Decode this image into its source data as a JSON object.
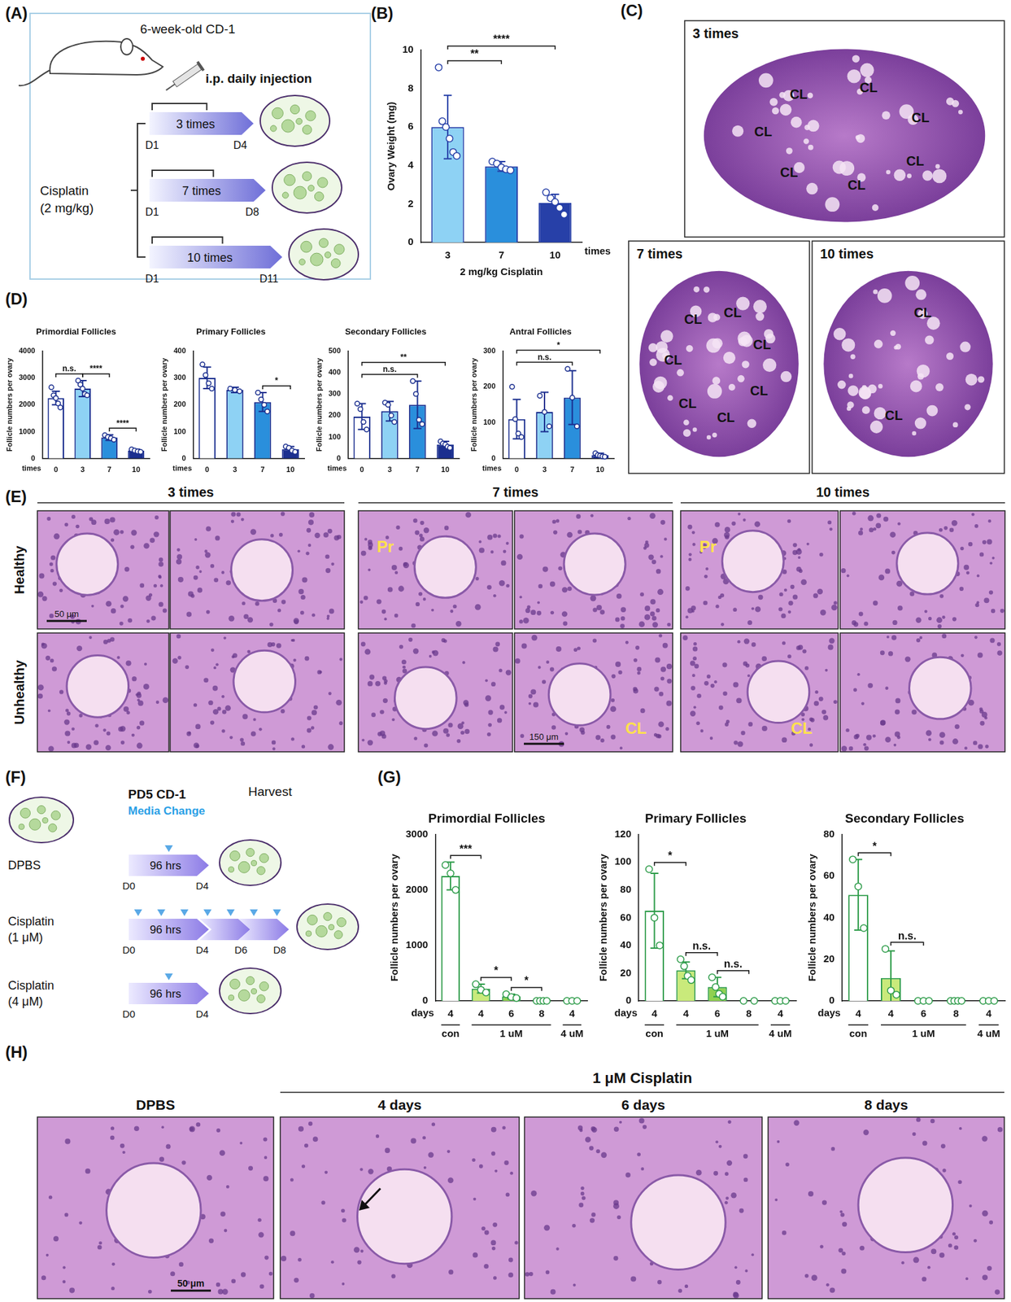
{
  "figure": {
    "panel_letters": [
      "(A)",
      "(B)",
      "(C)",
      "(D)",
      "(E)",
      "(F)",
      "(G)",
      "(H)"
    ],
    "A": {
      "animal": "6-week-old CD-1",
      "route": "i.p. daily injection",
      "drug": [
        "Cisplatin",
        "(2 mg/kg)"
      ],
      "arms": [
        {
          "label": "3 times",
          "start": "D1",
          "end": "D4"
        },
        {
          "label": "7 times",
          "start": "D1",
          "end": "D8"
        },
        {
          "label": "10 times",
          "start": "D1",
          "end": "D11"
        }
      ]
    },
    "C": {
      "sections": [
        {
          "label": "3 times",
          "marks": [
            "CL",
            "CL",
            "CL",
            "CL",
            "CL",
            "CL",
            "CL"
          ]
        },
        {
          "label": "7 times",
          "marks": [
            "CL",
            "CL",
            "CL",
            "CL",
            "CL",
            "CL",
            "CL"
          ]
        },
        {
          "label": "10 times",
          "marks": [
            "CL",
            "CL"
          ]
        }
      ]
    },
    "E": {
      "columns": [
        "3 times",
        "7 times",
        "10 times"
      ],
      "rows": [
        "Healthy",
        "Unhealthy"
      ],
      "tiles": [
        [
          {
            "labels": [],
            "scale": "50 μm"
          },
          {
            "labels": []
          },
          {
            "labels": [
              "Pr"
            ]
          },
          {
            "labels": []
          },
          {
            "labels": [
              "Pr"
            ]
          },
          {
            "labels": []
          }
        ],
        [
          {
            "labels": []
          },
          {
            "labels": []
          },
          {
            "labels": []
          },
          {
            "labels": [
              "CL"
            ],
            "scale": "150 μm"
          },
          {
            "labels": [
              "CL"
            ]
          },
          {
            "labels": []
          }
        ]
      ]
    },
    "F": {
      "source": "PD5 CD-1",
      "media": "Media Change",
      "harvest": "Harvest",
      "arms": [
        {
          "label": [
            "DPBS"
          ],
          "duration": "96 hrs",
          "days": [
            "D0",
            "D4"
          ],
          "media_changes": 1
        },
        {
          "label": [
            "Cisplatin",
            "(1 μM)"
          ],
          "duration": "96 hrs",
          "days": [
            "D0",
            "D4",
            "D6",
            "D8"
          ],
          "media_changes": 7
        },
        {
          "label": [
            "Cisplatin",
            "(4 μM)"
          ],
          "duration": "96 hrs",
          "days": [
            "D0",
            "D4"
          ],
          "media_changes": 1
        }
      ]
    },
    "H": {
      "group": "1 μM Cisplatin",
      "tiles": [
        "DPBS",
        "4 days",
        "6 days",
        "8 days"
      ],
      "scale": "50 μm"
    }
  },
  "chart_data": [
    {
      "type": "bar",
      "categories": [
        "3",
        "7",
        "10"
      ],
      "values": [
        6.0,
        3.95,
        2.05
      ],
      "errors": [
        1.65,
        0.25,
        0.45
      ],
      "points": [
        [
          9.1,
          6.3,
          6.0,
          5.4,
          4.7,
          4.5
        ],
        [
          4.2,
          4.1,
          3.9,
          3.8,
          3.75
        ],
        [
          2.6,
          2.3,
          2.1,
          1.8,
          1.45
        ]
      ],
      "colors": [
        "#8ed2f4",
        "#2a8fdc",
        "#2740a8"
      ],
      "y_label": "Ovary Weight (mg)",
      "x_label": "times",
      "x_title": "2 mg/kg Cisplatin",
      "ylim": [
        0,
        10
      ],
      "yticks": [
        0,
        2,
        4,
        6,
        8,
        10
      ],
      "grid": false,
      "annotations": [
        {
          "from": 0,
          "to": 1,
          "label": "**"
        },
        {
          "from": 0,
          "to": 2,
          "label": "****"
        }
      ]
    },
    {
      "type": "bar",
      "title": "Primordial Follicles",
      "categories": [
        "0",
        "3",
        "7",
        "10"
      ],
      "values": [
        2250,
        2600,
        780,
        290
      ],
      "errors": [
        250,
        300,
        100,
        60
      ],
      "points": [
        [
          2650,
          2350,
          2250,
          2050,
          1900
        ],
        [
          2900,
          2750,
          2600,
          2400,
          2350
        ],
        [
          870,
          800,
          760,
          700
        ],
        [
          340,
          300,
          270,
          250
        ]
      ],
      "colors": [
        "#ffffff",
        "#8ed2f4",
        "#2a8fdc",
        "#1b2f8f"
      ],
      "y_label": "Follicle numbers per ovary",
      "x_label": "times",
      "ylim": [
        0,
        4000
      ],
      "yticks": [
        0,
        1000,
        2000,
        3000,
        4000
      ],
      "grid": false,
      "annotations": [
        {
          "from": 0,
          "to": 1,
          "label": "n.s."
        },
        {
          "from": 1,
          "to": 2,
          "label": "****"
        },
        {
          "from": 2,
          "to": 3,
          "label": "****"
        }
      ]
    },
    {
      "type": "bar",
      "title": "Primary Follicles",
      "categories": [
        "0",
        "3",
        "7",
        "10"
      ],
      "values": [
        300,
        255,
        210,
        35
      ],
      "errors": [
        40,
        10,
        35,
        10
      ],
      "points": [
        [
          350,
          310,
          280,
          260
        ],
        [
          260,
          255,
          250
        ],
        [
          245,
          220,
          200,
          175
        ],
        [
          45,
          40,
          30,
          25
        ]
      ],
      "colors": [
        "#ffffff",
        "#8ed2f4",
        "#2a8fdc",
        "#1b2f8f"
      ],
      "y_label": "Follicle numbers per ovary",
      "x_label": "times",
      "ylim": [
        0,
        400
      ],
      "yticks": [
        0,
        100,
        200,
        300,
        400
      ],
      "grid": false,
      "annotations": [
        {
          "from": 2,
          "to": 3,
          "label": "*"
        }
      ]
    },
    {
      "type": "bar",
      "title": "Secondary Follicles",
      "categories": [
        "0",
        "3",
        "7",
        "10"
      ],
      "values": [
        195,
        220,
        250,
        65
      ],
      "errors": [
        60,
        45,
        110,
        15
      ],
      "points": [
        [
          255,
          230,
          170,
          135
        ],
        [
          260,
          250,
          200,
          170
        ],
        [
          360,
          300,
          180,
          160
        ],
        [
          80,
          70,
          65,
          55,
          50
        ]
      ],
      "colors": [
        "#ffffff",
        "#8ed2f4",
        "#2a8fdc",
        "#1b2f8f"
      ],
      "y_label": "Follicle numbers per ovary",
      "x_label": "times",
      "ylim": [
        0,
        500
      ],
      "yticks": [
        0,
        100,
        200,
        300,
        400,
        500
      ],
      "grid": false,
      "annotations": [
        {
          "from": 0,
          "to": 2,
          "label": "n.s."
        },
        {
          "from": 0,
          "to": 3,
          "label": "**"
        }
      ]
    },
    {
      "type": "bar",
      "title": "Antral Follicles",
      "categories": [
        "0",
        "3",
        "7",
        "10"
      ],
      "values": [
        110,
        130,
        170,
        10
      ],
      "errors": [
        55,
        55,
        75,
        5
      ],
      "points": [
        [
          200,
          110,
          70,
          60
        ],
        [
          175,
          130,
          90
        ],
        [
          250,
          170,
          90
        ],
        [
          15,
          10,
          8,
          6,
          5
        ]
      ],
      "colors": [
        "#ffffff",
        "#8ed2f4",
        "#2a8fdc",
        "#1b2f8f"
      ],
      "y_label": "Follicle numbers per ovary",
      "x_label": "times",
      "ylim": [
        0,
        300
      ],
      "yticks": [
        0,
        100,
        200,
        300
      ],
      "grid": false,
      "annotations": [
        {
          "from": 0,
          "to": 2,
          "label": "n.s."
        },
        {
          "from": 0,
          "to": 3,
          "label": "*"
        }
      ]
    },
    {
      "type": "bar",
      "title": "Primordial Follicles",
      "categories": [
        "4",
        "4",
        "6",
        "8",
        "4"
      ],
      "values": [
        2250,
        220,
        80,
        0,
        0
      ],
      "errors": [
        250,
        80,
        40,
        0,
        0
      ],
      "points": [
        [
          2450,
          2300,
          2000
        ],
        [
          300,
          200,
          150
        ],
        [
          120,
          70,
          50
        ],
        [
          0,
          0,
          0,
          0
        ],
        [
          0,
          0,
          0
        ]
      ],
      "colors": [
        "#ffffff",
        "#c9ea7b",
        "#8fd151",
        "#2e9c4a",
        "#2e9c4a"
      ],
      "y_label": "Follicle numbers per ovary",
      "x_label": "days",
      "groups": [
        {
          "label": "con",
          "from": 0,
          "to": 0
        },
        {
          "label": "1 uM",
          "from": 1,
          "to": 3
        },
        {
          "label": "4 uM",
          "from": 4,
          "to": 4
        }
      ],
      "ylim": [
        0,
        3000
      ],
      "yticks": [
        0,
        1000,
        2000,
        3000
      ],
      "grid": false,
      "annotations": [
        {
          "from": 0,
          "to": 1,
          "label": "***"
        },
        {
          "from": 1,
          "to": 2,
          "label": "*"
        },
        {
          "from": 2,
          "to": 3,
          "label": "*"
        }
      ]
    },
    {
      "type": "bar",
      "title": "Primary Follicles",
      "categories": [
        "4",
        "4",
        "6",
        "8",
        "4"
      ],
      "values": [
        65,
        22,
        10,
        0,
        0
      ],
      "errors": [
        27,
        6,
        7,
        0,
        0
      ],
      "points": [
        [
          95,
          60,
          40
        ],
        [
          30,
          25,
          18,
          15
        ],
        [
          17,
          10,
          5,
          3
        ],
        [
          0,
          0
        ],
        [
          0,
          0,
          0
        ]
      ],
      "colors": [
        "#ffffff",
        "#c9ea7b",
        "#8fd151",
        "#2e9c4a",
        "#2e9c4a"
      ],
      "y_label": "Follicle numbers per ovary",
      "x_label": "days",
      "groups": [
        {
          "label": "con",
          "from": 0,
          "to": 0
        },
        {
          "label": "1 uM",
          "from": 1,
          "to": 3
        },
        {
          "label": "4 uM",
          "from": 4,
          "to": 4
        }
      ],
      "ylim": [
        0,
        120
      ],
      "yticks": [
        0,
        20,
        40,
        60,
        80,
        100,
        120
      ],
      "grid": false,
      "annotations": [
        {
          "from": 0,
          "to": 1,
          "label": "*"
        },
        {
          "from": 1,
          "to": 2,
          "label": "n.s."
        },
        {
          "from": 2,
          "to": 3,
          "label": "n.s."
        }
      ]
    },
    {
      "type": "bar",
      "title": "Secondary Follicles",
      "categories": [
        "4",
        "4",
        "6",
        "8",
        "4"
      ],
      "values": [
        51,
        11,
        0,
        0,
        0
      ],
      "errors": [
        17,
        13,
        0,
        0,
        0
      ],
      "points": [
        [
          68,
          55,
          35
        ],
        [
          25,
          5,
          3
        ],
        [
          0,
          0,
          0
        ],
        [
          0,
          0,
          0,
          0
        ],
        [
          0,
          0,
          0
        ]
      ],
      "colors": [
        "#ffffff",
        "#c9ea7b",
        "#8fd151",
        "#2e9c4a",
        "#2e9c4a"
      ],
      "y_label": "Follicle numbers per ovary",
      "x_label": "days",
      "groups": [
        {
          "label": "con",
          "from": 0,
          "to": 0
        },
        {
          "label": "1 uM",
          "from": 1,
          "to": 3
        },
        {
          "label": "4 uM",
          "from": 4,
          "to": 4
        }
      ],
      "ylim": [
        0,
        80
      ],
      "yticks": [
        0,
        20,
        40,
        60,
        80
      ],
      "grid": false,
      "annotations": [
        {
          "from": 0,
          "to": 1,
          "label": "*"
        },
        {
          "from": 1,
          "to": 2,
          "label": "n.s."
        }
      ]
    }
  ]
}
